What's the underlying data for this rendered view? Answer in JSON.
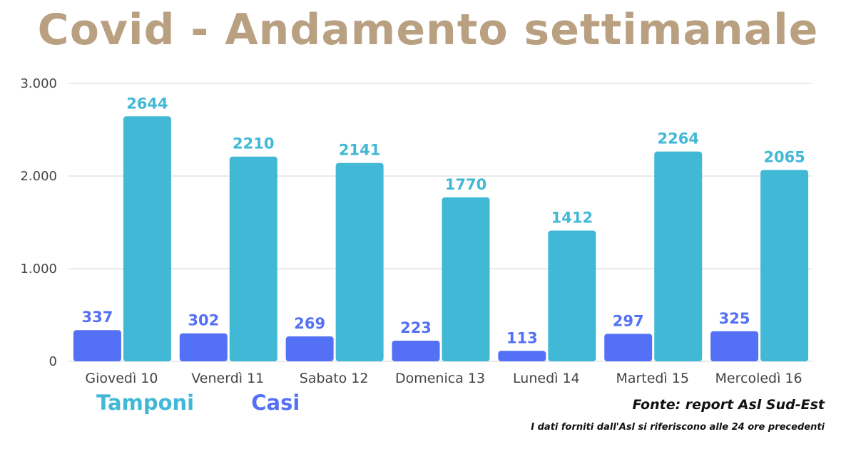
{
  "title": "Covid - Andamento settimanale",
  "legend": {
    "tamponi": "Tamponi",
    "casi": "Casi"
  },
  "source": "Fonte: report Asl Sud-Est",
  "note": "I dati forniti dall'Asl si riferiscono alle 24 ore precedenti",
  "colors": {
    "title": "#b9a081",
    "tamponi": "#41b8d6",
    "casi": "#5470f5",
    "grid": "#d6d6d6"
  },
  "chart_data": {
    "type": "bar",
    "categories": [
      "Giovedì 10",
      "Venerdì 11",
      "Sabato 12",
      "Domenica 13",
      "Lunedì 14",
      "Martedì 15",
      "Mercoledì 16"
    ],
    "series": [
      {
        "name": "Casi",
        "values": [
          337,
          302,
          269,
          223,
          113,
          297,
          325
        ]
      },
      {
        "name": "Tamponi",
        "values": [
          2644,
          2210,
          2141,
          1770,
          1412,
          2264,
          2065
        ]
      }
    ],
    "y_ticks": [
      {
        "value": 0,
        "label": "0"
      },
      {
        "value": 1000,
        "label": "1.000"
      },
      {
        "value": 2000,
        "label": "2.000"
      },
      {
        "value": 3000,
        "label": "3.000"
      }
    ],
    "ylim": [
      0,
      3000
    ],
    "grid": true
  }
}
